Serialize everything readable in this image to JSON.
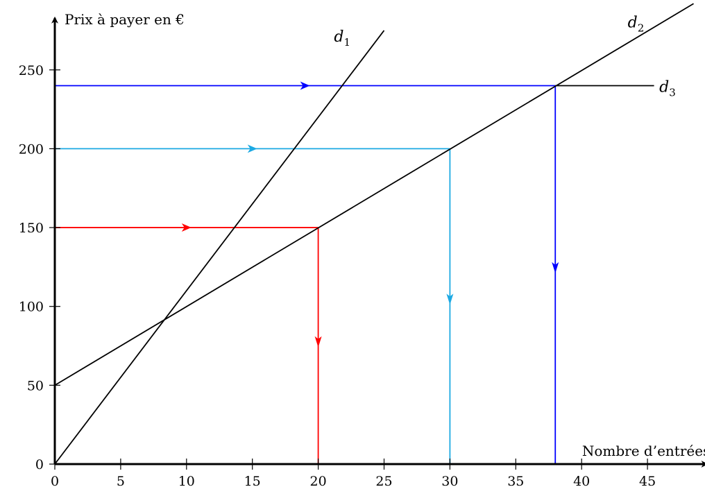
{
  "chart_data": {
    "type": "line",
    "title": "",
    "xlabel": "Nombre d’entrées",
    "ylabel": "Prix à payer en €",
    "xlim": [
      0,
      49.5
    ],
    "ylim": [
      0,
      290
    ],
    "x_ticks": [
      0,
      5,
      10,
      15,
      20,
      25,
      30,
      35,
      40,
      45
    ],
    "y_ticks": [
      0,
      50,
      100,
      150,
      200,
      250
    ],
    "grid": false,
    "series": [
      {
        "name": "d",
        "subscript": "1",
        "points": [
          [
            0,
            0
          ],
          [
            25,
            275
          ]
        ],
        "label_at": [
          21.2,
          268
        ],
        "color": "#000000"
      },
      {
        "name": "d",
        "subscript": "2",
        "points": [
          [
            0,
            50
          ],
          [
            48.5,
            292
          ]
        ],
        "label_at": [
          43.5,
          277
        ],
        "color": "#000000"
      },
      {
        "name": "d",
        "subscript": "3",
        "points": [
          [
            38,
            240
          ],
          [
            45.5,
            240
          ]
        ],
        "label_at": [
          45.9,
          236
        ],
        "color": "#000000"
      }
    ],
    "guides": [
      {
        "id": "red",
        "color": "#ff0000",
        "y_value": 150,
        "x_value": 20,
        "horizontal_arrow_at": 10,
        "vertical_arrow_at": 78
      },
      {
        "id": "cyan",
        "color": "#1ca9e3",
        "y_value": 200,
        "x_value": 30,
        "horizontal_arrow_at": 15,
        "vertical_arrow_at": 105
      },
      {
        "id": "blue",
        "color": "#0000ff",
        "y_value": 240,
        "x_value": 38,
        "horizontal_arrow_at": 19,
        "vertical_arrow_at": 125
      }
    ]
  }
}
